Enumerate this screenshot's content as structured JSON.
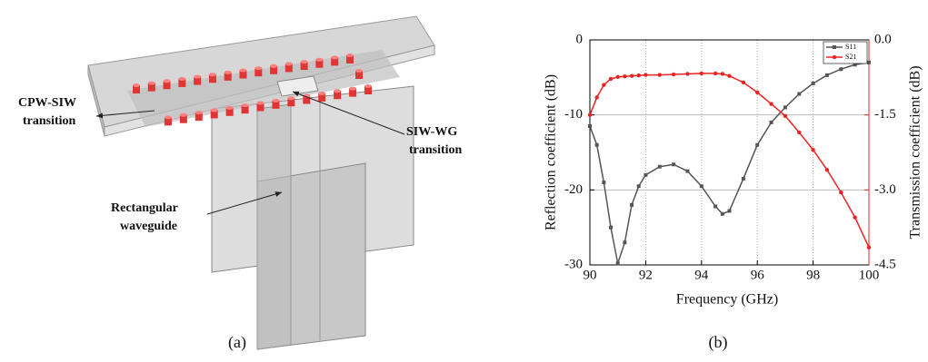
{
  "figure_a": {
    "caption": "(a)",
    "cpw_label": [
      "CPW-SIW",
      "transition"
    ],
    "wg_label": [
      "SIW-WG",
      "transition"
    ],
    "rect_label": [
      "Rectangular",
      "waveguide"
    ]
  },
  "chart_data": {
    "type": "line",
    "caption": "(b)",
    "xlabel": "Frequency (GHz)",
    "ylabel": "Reflection coefficient (dB)",
    "y2label": "Transmission coefficient (dB)",
    "x": [
      90,
      90.25,
      90.5,
      90.75,
      91,
      91.25,
      91.5,
      91.75,
      92,
      92.5,
      93,
      93.5,
      94,
      94.5,
      94.75,
      95,
      95.5,
      96,
      96.5,
      97,
      97.5,
      98,
      98.5,
      99,
      99.5,
      100
    ],
    "series": [
      {
        "name": "S11",
        "color": "#555555",
        "marker": "square",
        "values": [
          -11.5,
          -14,
          -19,
          -25,
          -29.8,
          -27,
          -22,
          -19.5,
          -18,
          -16.9,
          -16.6,
          -17.5,
          -19.5,
          -22.2,
          -23.2,
          -22.8,
          -18.5,
          -14,
          -11,
          -9,
          -7.2,
          -5.8,
          -4.7,
          -3.9,
          -3.3,
          -3.0
        ]
      },
      {
        "name": "S21",
        "color": "#ee2222",
        "marker": "circle",
        "axis": "y2",
        "values": [
          -1.5,
          -1.15,
          -0.9,
          -0.78,
          -0.74,
          -0.73,
          -0.72,
          -0.71,
          -0.7,
          -0.7,
          -0.69,
          -0.68,
          -0.67,
          -0.67,
          -0.68,
          -0.72,
          -0.85,
          -1.05,
          -1.28,
          -1.52,
          -1.85,
          -2.2,
          -2.6,
          -3.05,
          -3.55,
          -4.15
        ]
      }
    ],
    "xlim": [
      90,
      100
    ],
    "xticks": [
      90,
      92,
      94,
      96,
      98,
      100
    ],
    "ylim": [
      -30,
      0
    ],
    "yticks": [
      -30,
      -20,
      -10,
      0
    ],
    "y2lim": [
      -4.5,
      0
    ],
    "y2ticks": [
      {
        "value": -4.5,
        "label": "-4.5"
      },
      {
        "value": -3,
        "label": "-3.0"
      },
      -1.5,
      {
        "value": 0,
        "label": "0.0"
      }
    ],
    "y2color": "#ee2222",
    "grid": true,
    "legend": "upper right"
  }
}
